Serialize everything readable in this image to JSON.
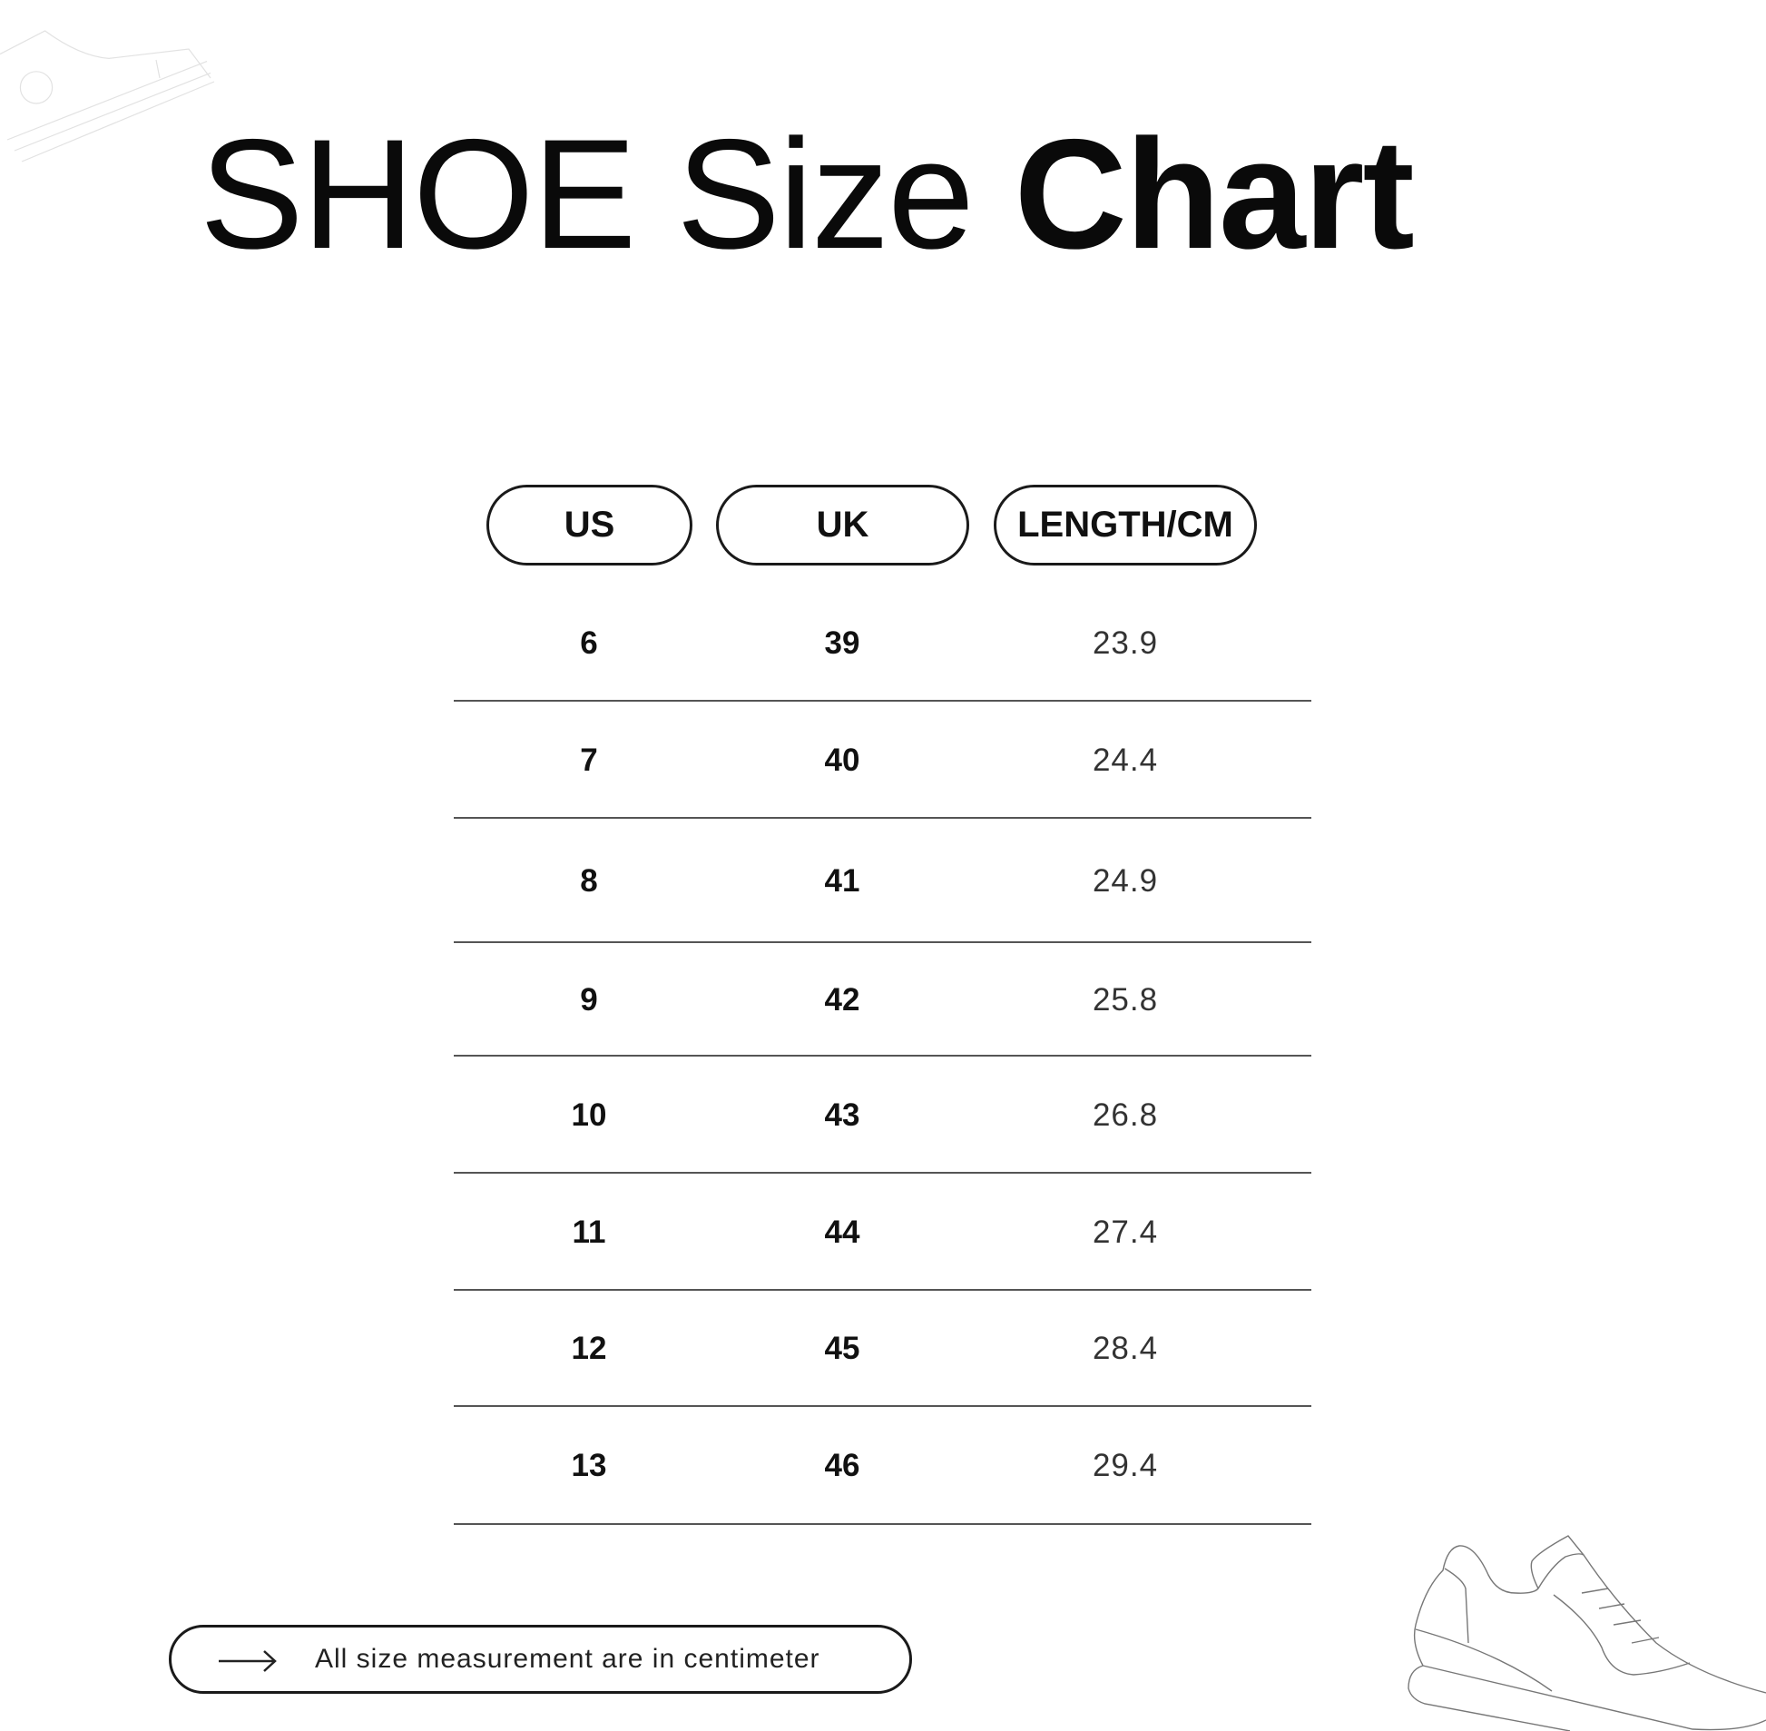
{
  "title": {
    "part1": "SHOE Size",
    "part2": "Chart"
  },
  "table": {
    "headers": [
      "US",
      "UK",
      "LENGTH/CM"
    ],
    "rows": [
      [
        "6",
        "39",
        "23.9"
      ],
      [
        "7",
        "40",
        "24.4"
      ],
      [
        "8",
        "41",
        "24.9"
      ],
      [
        "9",
        "42",
        "25.8"
      ],
      [
        "10",
        "43",
        "26.8"
      ],
      [
        "11",
        "44",
        "27.4"
      ],
      [
        "12",
        "45",
        "28.4"
      ],
      [
        "13",
        "46",
        "29.4"
      ]
    ]
  },
  "note": {
    "icon": "arrow-right-icon",
    "text": "All size measurement are in centimeter"
  },
  "decorations": {
    "top_left": "sneaker-outline-faint",
    "bottom_right": "sneaker-outline"
  }
}
